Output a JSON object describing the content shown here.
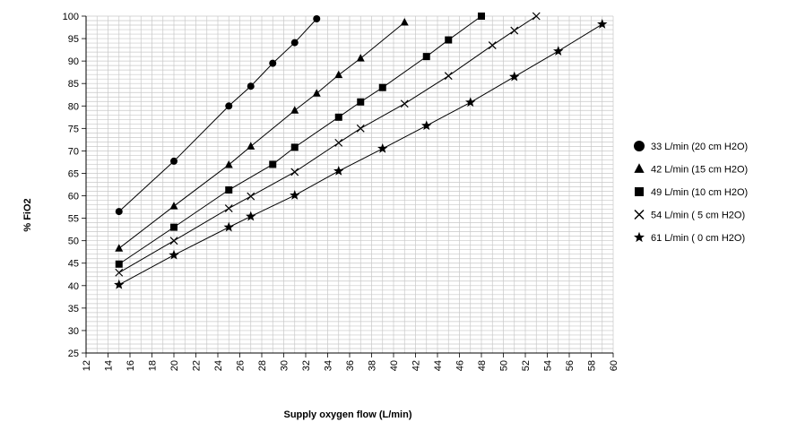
{
  "chart_data": {
    "type": "line",
    "title": "",
    "xlabel": "Supply oxygen flow (L/min)",
    "ylabel": "% FiO2",
    "xlim": [
      12,
      60
    ],
    "ylim": [
      25,
      100
    ],
    "xticks": [
      12,
      14,
      16,
      18,
      20,
      22,
      24,
      26,
      28,
      30,
      32,
      34,
      36,
      38,
      40,
      42,
      44,
      46,
      48,
      50,
      52,
      54,
      56,
      58,
      60
    ],
    "yticks": [
      25,
      30,
      35,
      40,
      45,
      50,
      55,
      60,
      65,
      70,
      75,
      80,
      85,
      90,
      95,
      100
    ],
    "grid": true,
    "legend_position": "right",
    "series": [
      {
        "name": "33 L/min (20 cm H2O)",
        "marker": "circle",
        "points": [
          [
            15,
            56.5
          ],
          [
            20,
            67.7
          ],
          [
            25,
            80
          ],
          [
            27,
            84.4
          ],
          [
            29,
            89.5
          ],
          [
            31,
            94.1
          ],
          [
            33,
            99.4
          ]
        ]
      },
      {
        "name": "42 L/min (15 cm H2O)",
        "marker": "triangle",
        "points": [
          [
            15,
            48.3
          ],
          [
            20,
            57.7
          ],
          [
            25,
            66.9
          ],
          [
            27,
            71
          ],
          [
            31,
            79
          ],
          [
            33,
            82.8
          ],
          [
            35,
            86.9
          ],
          [
            37,
            90.6
          ],
          [
            41,
            98.6
          ]
        ]
      },
      {
        "name": "49 L/min (10 cm H2O)",
        "marker": "square",
        "points": [
          [
            15,
            44.8
          ],
          [
            20,
            53
          ],
          [
            25,
            61.3
          ],
          [
            29,
            67
          ],
          [
            31,
            70.8
          ],
          [
            35,
            77.5
          ],
          [
            37,
            80.9
          ],
          [
            39,
            84.1
          ],
          [
            43,
            91
          ],
          [
            45,
            94.7
          ],
          [
            48,
            100
          ]
        ]
      },
      {
        "name": "54 L/min ( 5 cm H2O)",
        "marker": "x",
        "points": [
          [
            15,
            42.9
          ],
          [
            20,
            50
          ],
          [
            25,
            57.2
          ],
          [
            27,
            59.9
          ],
          [
            31,
            65.3
          ],
          [
            35,
            71.8
          ],
          [
            37,
            75
          ],
          [
            41,
            80.5
          ],
          [
            45,
            86.7
          ],
          [
            49,
            93.5
          ],
          [
            51,
            96.8
          ],
          [
            53,
            100
          ]
        ]
      },
      {
        "name": "61 L/min ( 0 cm H2O)",
        "marker": "star",
        "points": [
          [
            15,
            40.2
          ],
          [
            20,
            46.8
          ],
          [
            25,
            53
          ],
          [
            27,
            55.4
          ],
          [
            31,
            60.1
          ],
          [
            35,
            65.5
          ],
          [
            39,
            70.5
          ],
          [
            43,
            75.6
          ],
          [
            47,
            80.8
          ],
          [
            51,
            86.5
          ],
          [
            55,
            92.2
          ],
          [
            59,
            98.2
          ]
        ]
      }
    ]
  }
}
